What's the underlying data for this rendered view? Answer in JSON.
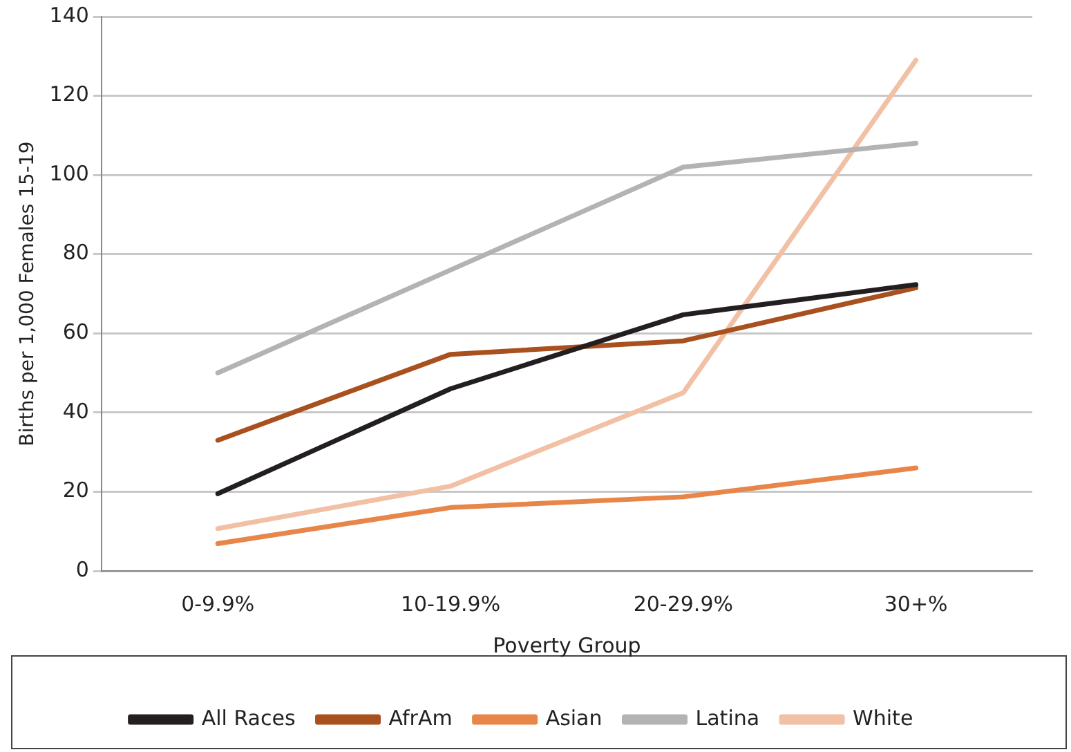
{
  "chart_data": {
    "type": "line",
    "xlabel": "Poverty Group",
    "ylabel": "Births per 1,000 Females 15-19",
    "categories": [
      "0-9.9%",
      "10-19.9%",
      "20-29.9%",
      "30+%"
    ],
    "series": [
      {
        "name": "All Races",
        "color": "#231f20",
        "values": [
          19.5,
          46,
          64.7,
          72.3
        ]
      },
      {
        "name": "AfrAm",
        "color": "#a9501f",
        "values": [
          33,
          54.7,
          58.1,
          71.5
        ]
      },
      {
        "name": "Asian",
        "color": "#e8864a",
        "values": [
          6.9,
          16,
          18.7,
          26
        ]
      },
      {
        "name": "Latina",
        "color": "#b3b3b3",
        "values": [
          50,
          76,
          102,
          108
        ]
      },
      {
        "name": "White",
        "color": "#f2c0a4",
        "values": [
          10.7,
          21.4,
          45,
          129
        ]
      }
    ],
    "ylim": [
      0,
      140
    ],
    "yticks": [
      0,
      20,
      40,
      60,
      80,
      100,
      120,
      140
    ],
    "grid": "y",
    "legend": "bottom",
    "marker": "none",
    "line_style": "solid"
  }
}
